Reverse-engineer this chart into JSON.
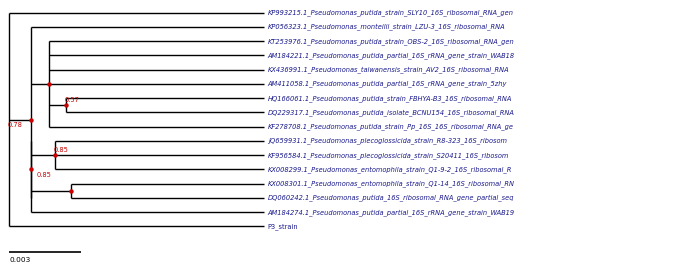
{
  "title": "",
  "scale_bar_label": "0.003",
  "taxa": [
    "KP993215.1_Pseudomonas_putida_strain_SLY10_16S_ribosomal_RNA_gen",
    "KP056323.1_Pseudomonas_monteilii_strain_LZU-3_16S_ribosomal_RNA",
    "KT253976.1_Pseudomonas_putida_strain_OBS-2_16S_ribosomal_RNA_gen",
    "AM184221.1_Pseudomonas_putida_partial_16S_rRNA_gene_strain_WAB18",
    "KX436991.1_Pseudomonas_taiwanensis_strain_AV2_16S_ribosomal_RNA",
    "AM411058.1_Pseudomonas_putida_partial_16S_rRNA_gene_strain_5zhy",
    "HQ166061.1_Pseudomonas_putida_strain_FBHYA-B3_16S_ribosomal_RNA",
    "DQ229317.1_Pseudomonas_putida_isolate_BCNU154_16S_ribosomal_RNA",
    "KF278708.1_Pseudomonas_putida_strain_Pp_16S_16S_ribosomal_RNA_ge",
    "JQ659931.1_Pseudomonas_plecoglossicida_strain_R8-323_16S_ribosom",
    "KF956584.1_Pseudomonas_plecoglossicida_strain_S20411_16S_ribosom",
    "KX008299.1_Pseudomonas_entomophila_strain_Q1-9-2_16S_ribosomal_R",
    "KX008301.1_Pseudomonas_entomophila_strain_Q1-14_16S_ribosomal_RN",
    "DQ060242.1_Pseudomonas_putida_16S_ribosomal_RNA_gene_partial_seq",
    "AM184274.1_Pseudomonas_putida_partial_16S_rRNA_gene_strain_WAB19",
    "P3_strain"
  ],
  "line_color": "#000000",
  "node_color": "#cc0000",
  "bootstrap_color": "#cc0000",
  "text_color": "#1a1a8c",
  "font_size": 4.8,
  "background_color": "#ffffff"
}
